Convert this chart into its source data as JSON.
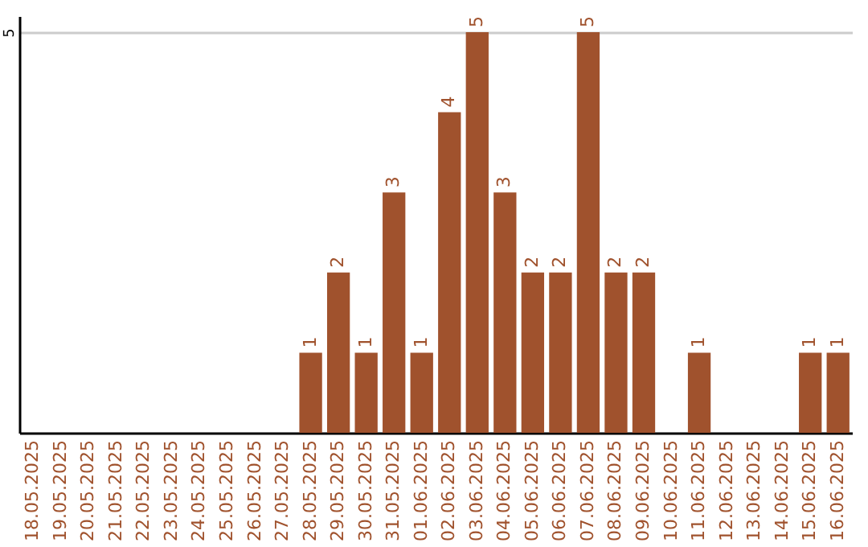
{
  "chart_data": {
    "type": "bar",
    "categories": [
      "18.05.2025",
      "19.05.2025",
      "20.05.2025",
      "21.05.2025",
      "22.05.2025",
      "23.05.2025",
      "24.05.2025",
      "25.05.2025",
      "26.05.2025",
      "27.05.2025",
      "28.05.2025",
      "29.05.2025",
      "30.05.2025",
      "31.05.2025",
      "01.06.2025",
      "02.06.2025",
      "03.06.2025",
      "04.06.2025",
      "05.06.2025",
      "06.06.2025",
      "07.06.2025",
      "08.06.2025",
      "09.06.2025",
      "10.06.2025",
      "11.06.2025",
      "12.06.2025",
      "13.06.2025",
      "14.06.2025",
      "15.06.2025",
      "16.06.2025"
    ],
    "values": [
      0,
      0,
      0,
      0,
      0,
      0,
      0,
      0,
      0,
      0,
      1,
      2,
      1,
      3,
      1,
      4,
      5,
      3,
      2,
      2,
      5,
      2,
      2,
      0,
      1,
      0,
      0,
      0,
      1,
      1
    ],
    "value_labels": [
      null,
      null,
      null,
      null,
      null,
      null,
      null,
      null,
      null,
      null,
      "1",
      "2",
      "1",
      "3",
      "1",
      "4",
      "5",
      "3",
      "2",
      "2",
      "5",
      "2",
      "2",
      null,
      "1",
      null,
      null,
      null,
      "1",
      "1"
    ],
    "color": "#a0522d",
    "ylim": [
      0,
      5.2
    ],
    "yticks": [
      5
    ],
    "grid": "y"
  }
}
